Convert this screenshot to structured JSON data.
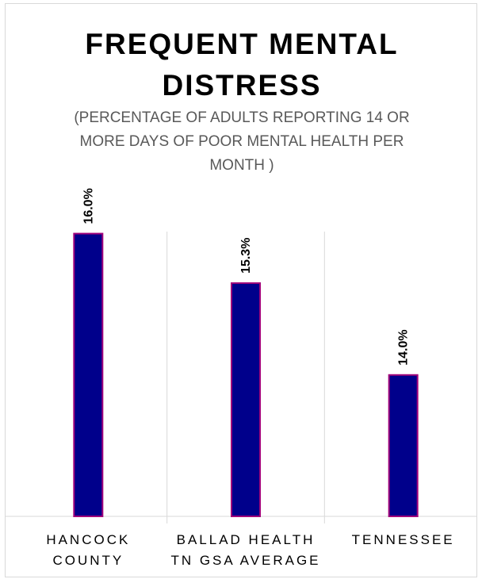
{
  "chart_data": {
    "type": "bar",
    "title": "FREQUENT MENTAL DISTRESS",
    "subtitle": "(PERCENTAGE OF ADULTS REPORTING 14 OR MORE DAYS OF POOR MENTAL HEALTH PER MONTH )",
    "categories": [
      [
        "HANCOCK",
        "COUNTY"
      ],
      [
        "BALLAD HEALTH",
        "TN GSA AVERAGE"
      ],
      [
        "TENNESSEE"
      ]
    ],
    "values": [
      16.0,
      15.3,
      14.0
    ],
    "data_labels": [
      "16.0%",
      "15.3%",
      "14.0%"
    ],
    "ylim": [
      12.0,
      16.5
    ],
    "bar_color": "#00008B",
    "bar_border_color": "#A0007A",
    "grid": "vertical separators between categories",
    "legend": "none"
  }
}
